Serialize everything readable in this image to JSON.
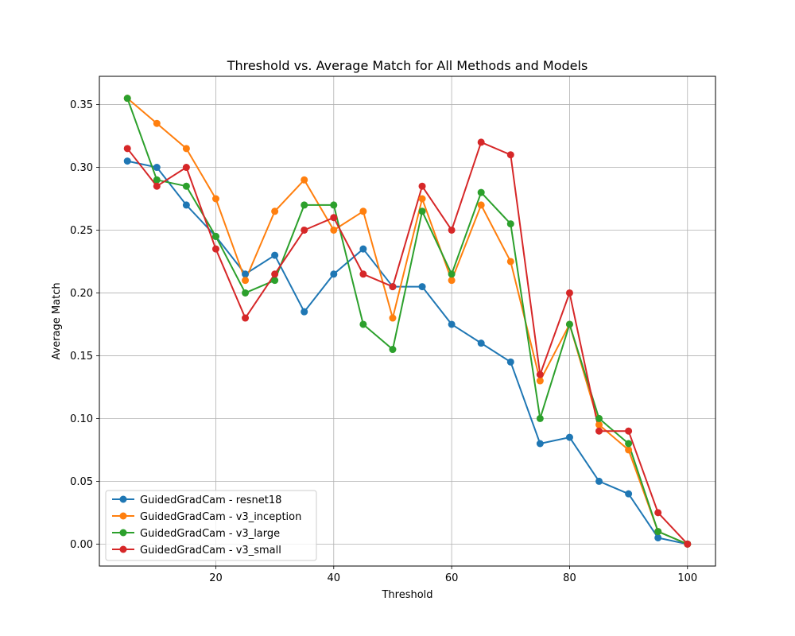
{
  "chart_data": {
    "type": "line",
    "title": "Threshold vs. Average Match for All Methods and Models",
    "xlabel": "Threshold",
    "ylabel": "Average Match",
    "x": [
      5,
      10,
      15,
      20,
      25,
      30,
      35,
      40,
      45,
      50,
      55,
      60,
      65,
      70,
      75,
      80,
      85,
      90,
      95,
      100
    ],
    "xlim": [
      0.25,
      104.75
    ],
    "ylim": [
      -0.0175,
      0.3725
    ],
    "xticks": [
      20,
      40,
      60,
      80,
      100
    ],
    "yticks": [
      0.0,
      0.05,
      0.1,
      0.15,
      0.2,
      0.25,
      0.3,
      0.35
    ],
    "grid": true,
    "legend_position": "lower-left",
    "series": [
      {
        "name": "GuidedGradCam - resnet18",
        "color": "#1f77b4",
        "values": [
          0.305,
          0.3,
          0.27,
          0.245,
          0.215,
          0.23,
          0.185,
          0.215,
          0.235,
          0.205,
          0.205,
          0.175,
          0.16,
          0.145,
          0.08,
          0.085,
          0.05,
          0.04,
          0.005,
          0.0
        ]
      },
      {
        "name": "GuidedGradCam - v3_inception",
        "color": "#ff7f0e",
        "values": [
          0.355,
          0.335,
          0.315,
          0.275,
          0.21,
          0.265,
          0.29,
          0.25,
          0.265,
          0.18,
          0.275,
          0.21,
          0.27,
          0.225,
          0.13,
          0.175,
          0.095,
          0.075,
          0.01,
          0.0
        ]
      },
      {
        "name": "GuidedGradCam - v3_large",
        "color": "#2ca02c",
        "values": [
          0.355,
          0.29,
          0.285,
          0.245,
          0.2,
          0.21,
          0.27,
          0.27,
          0.175,
          0.155,
          0.265,
          0.215,
          0.28,
          0.255,
          0.1,
          0.175,
          0.1,
          0.08,
          0.01,
          0.0
        ]
      },
      {
        "name": "GuidedGradCam - v3_small",
        "color": "#d62728",
        "values": [
          0.315,
          0.285,
          0.3,
          0.235,
          0.18,
          0.215,
          0.25,
          0.26,
          0.215,
          0.205,
          0.285,
          0.25,
          0.32,
          0.31,
          0.135,
          0.2,
          0.09,
          0.09,
          0.025,
          0.0
        ]
      }
    ]
  }
}
